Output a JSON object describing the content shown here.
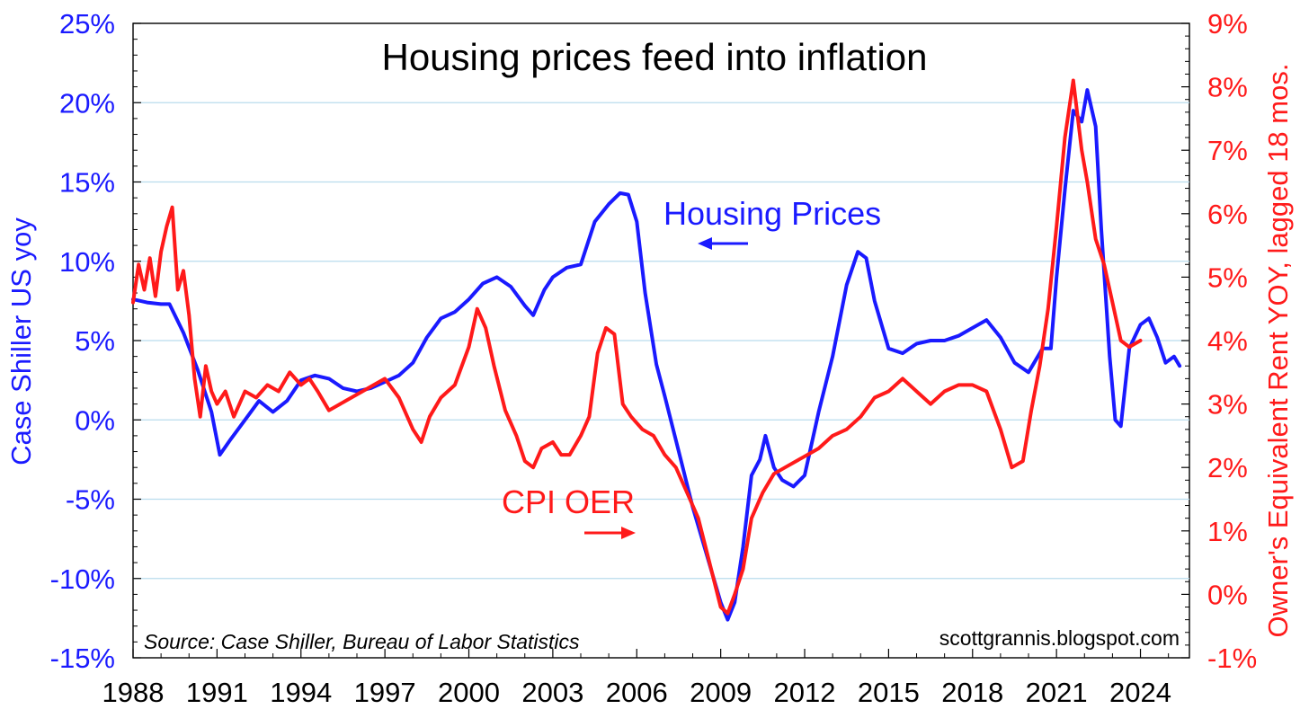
{
  "chart_data": {
    "type": "line",
    "title": "Housing prices feed into inflation",
    "source_note": "Source: Case Shiller, Bureau of Labor Statistics",
    "watermark": "scottgrannis.blogspot.com",
    "xlabel": "",
    "x_ticks": [
      "1988",
      "1991",
      "1994",
      "1997",
      "2000",
      "2003",
      "2006",
      "2009",
      "2012",
      "2015",
      "2018",
      "2021",
      "2024"
    ],
    "xlim": [
      1988.0,
      2025.75
    ],
    "y_left": {
      "label": "Case Shiller US yoy",
      "ticks": [
        "-15%",
        "-10%",
        "-5%",
        "0%",
        "5%",
        "10%",
        "15%",
        "20%",
        "25%"
      ],
      "ylim": [
        -15,
        25
      ],
      "color": "#1a1aff"
    },
    "y_right": {
      "label": "Owner's Equivalent Rent YOY, lagged 18 mos.",
      "ticks": [
        "-1%",
        "0%",
        "1%",
        "2%",
        "3%",
        "4%",
        "5%",
        "6%",
        "7%",
        "8%",
        "9%"
      ],
      "ylim": [
        -1,
        9
      ],
      "color": "#ff1a1a"
    },
    "grid": true,
    "annotations": [
      {
        "text": "Housing Prices",
        "series": "Housing Prices",
        "arrow": "left"
      },
      {
        "text": "CPI OER",
        "series": "CPI OER",
        "arrow": "right"
      }
    ],
    "series": [
      {
        "name": "Housing Prices",
        "axis": "left",
        "color": "#1a1aff",
        "x": [
          1988.0,
          1988.5,
          1989.0,
          1989.3,
          1989.8,
          1990.3,
          1990.8,
          1991.1,
          1991.5,
          1992.0,
          1992.5,
          1993.0,
          1993.5,
          1994.0,
          1994.5,
          1995.0,
          1995.5,
          1996.0,
          1996.5,
          1997.0,
          1997.5,
          1998.0,
          1998.5,
          1999.0,
          1999.5,
          2000.0,
          2000.5,
          2001.0,
          2001.5,
          2002.0,
          2002.3,
          2002.7,
          2003.0,
          2003.5,
          2004.0,
          2004.5,
          2005.0,
          2005.4,
          2005.7,
          2006.0,
          2006.3,
          2006.7,
          2007.0,
          2007.5,
          2008.0,
          2008.5,
          2009.0,
          2009.25,
          2009.5,
          2009.8,
          2010.1,
          2010.4,
          2010.6,
          2010.9,
          2011.2,
          2011.6,
          2012.0,
          2012.5,
          2013.0,
          2013.5,
          2013.9,
          2014.2,
          2014.5,
          2015.0,
          2015.5,
          2016.0,
          2016.5,
          2017.0,
          2017.5,
          2018.0,
          2018.5,
          2019.0,
          2019.5,
          2020.0,
          2020.5,
          2020.8,
          2021.0,
          2021.3,
          2021.6,
          2021.9,
          2022.1,
          2022.4,
          2022.6,
          2022.9,
          2023.1,
          2023.3,
          2023.6,
          2024.0,
          2024.3,
          2024.6,
          2024.9,
          2025.2,
          2025.4
        ],
        "y": [
          7.6,
          7.4,
          7.3,
          7.3,
          5.5,
          3.2,
          0.5,
          -2.2,
          -1.2,
          0.0,
          1.2,
          0.5,
          1.2,
          2.5,
          2.8,
          2.6,
          2.0,
          1.8,
          2.0,
          2.4,
          2.8,
          3.6,
          5.2,
          6.4,
          6.8,
          7.6,
          8.6,
          9.0,
          8.4,
          7.2,
          6.6,
          8.2,
          9.0,
          9.6,
          9.8,
          12.5,
          13.6,
          14.3,
          14.2,
          12.5,
          8.0,
          3.5,
          1.5,
          -2.0,
          -5.5,
          -8.5,
          -11.5,
          -12.6,
          -11.5,
          -8.0,
          -3.5,
          -2.5,
          -1.0,
          -3.0,
          -3.8,
          -4.2,
          -3.5,
          0.5,
          4.0,
          8.5,
          10.6,
          10.2,
          7.5,
          4.5,
          4.2,
          4.8,
          5.0,
          5.0,
          5.3,
          5.8,
          6.3,
          5.2,
          3.6,
          3.0,
          4.5,
          4.5,
          9.0,
          14.5,
          19.5,
          18.8,
          20.8,
          18.5,
          12.0,
          4.0,
          0.0,
          -0.4,
          4.5,
          6.0,
          6.4,
          5.2,
          3.6,
          4.0,
          3.4
        ]
      },
      {
        "name": "CPI OER",
        "axis": "right",
        "color": "#ff1a1a",
        "x": [
          1988.0,
          1988.2,
          1988.4,
          1988.6,
          1988.8,
          1989.0,
          1989.2,
          1989.4,
          1989.6,
          1989.8,
          1990.0,
          1990.2,
          1990.4,
          1990.6,
          1990.8,
          1991.0,
          1991.3,
          1991.6,
          1992.0,
          1992.4,
          1992.8,
          1993.2,
          1993.6,
          1994.0,
          1994.3,
          1994.6,
          1995.0,
          1995.4,
          1995.8,
          1996.2,
          1996.6,
          1997.0,
          1997.5,
          1998.0,
          1998.3,
          1998.6,
          1999.0,
          1999.5,
          2000.0,
          2000.3,
          2000.6,
          2000.9,
          2001.3,
          2001.7,
          2002.0,
          2002.3,
          2002.6,
          2003.0,
          2003.3,
          2003.6,
          2004.0,
          2004.3,
          2004.6,
          2004.9,
          2005.2,
          2005.5,
          2005.8,
          2006.2,
          2006.6,
          2007.0,
          2007.4,
          2007.8,
          2008.2,
          2008.6,
          2009.0,
          2009.25,
          2009.5,
          2009.8,
          2010.1,
          2010.5,
          2010.9,
          2011.3,
          2011.7,
          2012.1,
          2012.5,
          2013.0,
          2013.5,
          2014.0,
          2014.5,
          2015.0,
          2015.5,
          2016.0,
          2016.5,
          2017.0,
          2017.5,
          2018.0,
          2018.5,
          2019.0,
          2019.4,
          2019.8,
          2020.1,
          2020.4,
          2020.7,
          2021.0,
          2021.3,
          2021.6,
          2021.9,
          2022.1,
          2022.4,
          2022.7,
          2023.0,
          2023.3,
          2023.6,
          2024.0
        ],
        "y": [
          4.6,
          5.2,
          4.8,
          5.3,
          4.7,
          5.4,
          5.8,
          6.1,
          4.8,
          5.1,
          4.4,
          3.4,
          2.8,
          3.6,
          3.2,
          3.0,
          3.2,
          2.8,
          3.2,
          3.1,
          3.3,
          3.2,
          3.5,
          3.3,
          3.4,
          3.2,
          2.9,
          3.0,
          3.1,
          3.2,
          3.3,
          3.4,
          3.1,
          2.6,
          2.4,
          2.8,
          3.1,
          3.3,
          3.9,
          4.5,
          4.2,
          3.6,
          2.9,
          2.5,
          2.1,
          2.0,
          2.3,
          2.4,
          2.2,
          2.2,
          2.5,
          2.8,
          3.8,
          4.2,
          4.1,
          3.0,
          2.8,
          2.6,
          2.5,
          2.2,
          2.0,
          1.6,
          1.2,
          0.5,
          -0.2,
          -0.3,
          0.0,
          0.4,
          1.2,
          1.6,
          1.9,
          2.0,
          2.1,
          2.2,
          2.3,
          2.5,
          2.6,
          2.8,
          3.1,
          3.2,
          3.4,
          3.2,
          3.0,
          3.2,
          3.3,
          3.3,
          3.2,
          2.6,
          2.0,
          2.1,
          2.9,
          3.6,
          4.5,
          5.8,
          7.2,
          8.1,
          7.0,
          6.5,
          5.6,
          5.2,
          4.6,
          4.0,
          3.9,
          4.0
        ]
      }
    ]
  }
}
